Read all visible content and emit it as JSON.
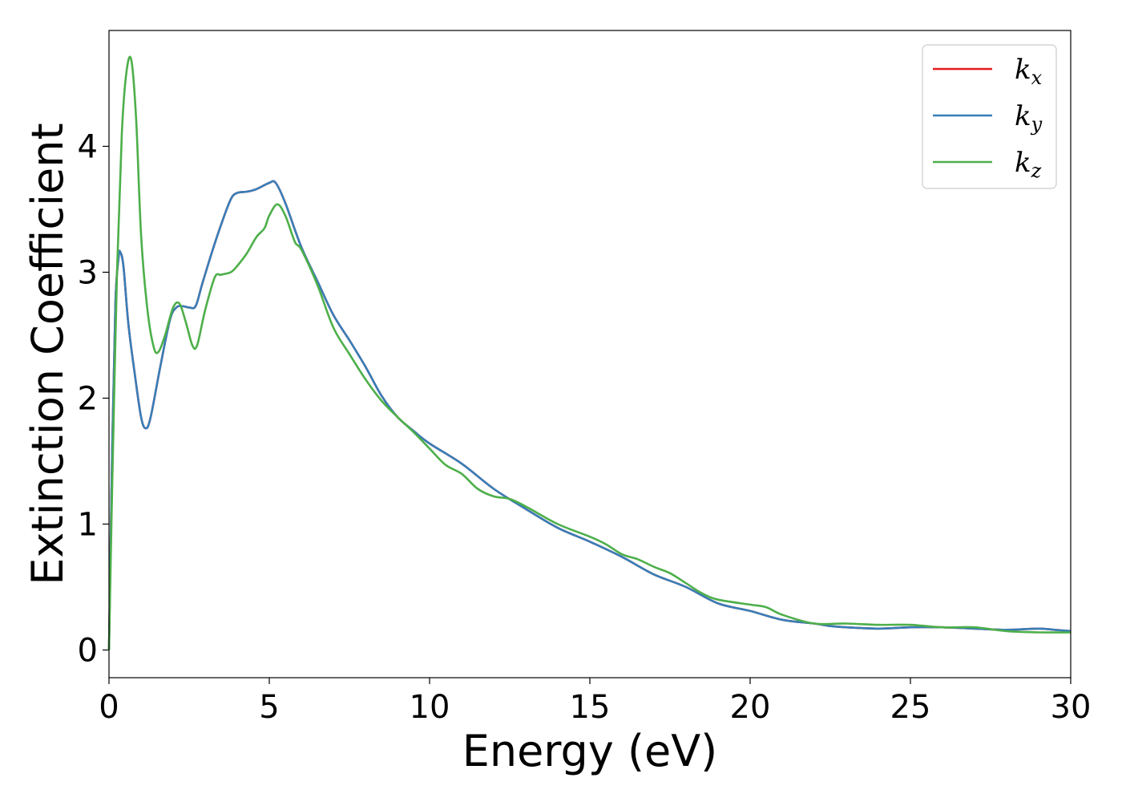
{
  "chart_data": {
    "type": "line",
    "title": "",
    "xlabel": "Energy (eV)",
    "ylabel": "Extinction Coefficient",
    "xlim": [
      0,
      30
    ],
    "ylim": [
      -0.22,
      4.92
    ],
    "xticks": [
      0,
      5,
      10,
      15,
      20,
      25,
      30
    ],
    "yticks": [
      0,
      1,
      2,
      3,
      4
    ],
    "grid": false,
    "legend_position": "top-right",
    "series": [
      {
        "name": "k_x",
        "sym": "k",
        "sub": "x",
        "color": "#e41a1c",
        "x": [
          0,
          0.1,
          0.2,
          0.3,
          0.35,
          0.45,
          0.6,
          0.8,
          1.0,
          1.15,
          1.3,
          1.6,
          1.9,
          2.1,
          2.3,
          2.5,
          2.7,
          2.9,
          3.2,
          3.5,
          3.8,
          4.0,
          4.3,
          4.6,
          5.0,
          5.2,
          5.5,
          6.0,
          6.5,
          7.0,
          7.5,
          8.0,
          8.5,
          9.0,
          9.5,
          10.0,
          11.0,
          12.0,
          13.0,
          14.0,
          15.0,
          16.0,
          17.0,
          18.0,
          19.0,
          20.0,
          21.0,
          22.0,
          22.5,
          23.0,
          24.0,
          25.0,
          26.0,
          27.0,
          28.0,
          29.0,
          29.5,
          30.0
        ],
        "y": [
          0,
          1.6,
          2.75,
          3.12,
          3.16,
          3.05,
          2.6,
          2.2,
          1.85,
          1.76,
          1.85,
          2.25,
          2.62,
          2.72,
          2.73,
          2.72,
          2.73,
          2.9,
          3.15,
          3.38,
          3.58,
          3.63,
          3.64,
          3.66,
          3.71,
          3.71,
          3.55,
          3.2,
          2.93,
          2.66,
          2.46,
          2.25,
          2.02,
          1.85,
          1.74,
          1.64,
          1.48,
          1.28,
          1.12,
          0.97,
          0.86,
          0.74,
          0.6,
          0.5,
          0.37,
          0.31,
          0.24,
          0.21,
          0.19,
          0.18,
          0.17,
          0.18,
          0.18,
          0.17,
          0.16,
          0.17,
          0.16,
          0.15
        ]
      },
      {
        "name": "k_y",
        "sym": "k",
        "sub": "y",
        "color": "#377eb8",
        "x": [
          0,
          0.1,
          0.2,
          0.3,
          0.35,
          0.45,
          0.6,
          0.8,
          1.0,
          1.15,
          1.3,
          1.6,
          1.9,
          2.1,
          2.3,
          2.5,
          2.7,
          2.9,
          3.2,
          3.5,
          3.8,
          4.0,
          4.3,
          4.6,
          5.0,
          5.2,
          5.5,
          6.0,
          6.5,
          7.0,
          7.5,
          8.0,
          8.5,
          9.0,
          9.5,
          10.0,
          11.0,
          12.0,
          13.0,
          14.0,
          15.0,
          16.0,
          17.0,
          18.0,
          19.0,
          20.0,
          21.0,
          22.0,
          22.5,
          23.0,
          24.0,
          25.0,
          26.0,
          27.0,
          28.0,
          29.0,
          29.5,
          30.0
        ],
        "y": [
          0,
          1.6,
          2.75,
          3.12,
          3.16,
          3.05,
          2.6,
          2.2,
          1.85,
          1.76,
          1.85,
          2.25,
          2.62,
          2.72,
          2.73,
          2.72,
          2.73,
          2.9,
          3.15,
          3.38,
          3.58,
          3.63,
          3.64,
          3.66,
          3.71,
          3.71,
          3.55,
          3.2,
          2.93,
          2.66,
          2.46,
          2.25,
          2.02,
          1.85,
          1.74,
          1.64,
          1.48,
          1.28,
          1.12,
          0.97,
          0.86,
          0.74,
          0.6,
          0.5,
          0.37,
          0.31,
          0.24,
          0.21,
          0.19,
          0.18,
          0.17,
          0.18,
          0.18,
          0.17,
          0.16,
          0.17,
          0.16,
          0.15
        ]
      },
      {
        "name": "k_z",
        "sym": "k",
        "sub": "z",
        "color": "#4daf4a",
        "x": [
          0,
          0.1,
          0.25,
          0.4,
          0.55,
          0.7,
          0.85,
          1.0,
          1.2,
          1.4,
          1.55,
          1.75,
          2.0,
          2.2,
          2.4,
          2.6,
          2.75,
          3.0,
          3.3,
          3.5,
          3.8,
          4.0,
          4.3,
          4.6,
          4.85,
          5.0,
          5.25,
          5.5,
          5.8,
          6.0,
          6.5,
          7.0,
          7.5,
          8.0,
          8.5,
          9.0,
          9.5,
          10.0,
          10.5,
          11.0,
          11.5,
          12.0,
          12.5,
          13.0,
          14.0,
          15.0,
          15.5,
          16.0,
          16.5,
          17.0,
          17.5,
          18.0,
          18.5,
          19.0,
          20.0,
          20.5,
          21.0,
          22.0,
          23.0,
          24.0,
          25.0,
          26.0,
          27.0,
          28.0,
          29.0,
          30.0
        ],
        "y": [
          0,
          1.3,
          3.0,
          4.1,
          4.6,
          4.68,
          4.2,
          3.3,
          2.7,
          2.4,
          2.37,
          2.5,
          2.72,
          2.75,
          2.6,
          2.42,
          2.42,
          2.7,
          2.96,
          2.98,
          3.0,
          3.05,
          3.15,
          3.28,
          3.35,
          3.45,
          3.54,
          3.45,
          3.24,
          3.18,
          2.9,
          2.56,
          2.35,
          2.15,
          1.98,
          1.85,
          1.73,
          1.6,
          1.47,
          1.4,
          1.28,
          1.22,
          1.2,
          1.14,
          1.0,
          0.9,
          0.84,
          0.76,
          0.72,
          0.66,
          0.61,
          0.53,
          0.45,
          0.4,
          0.36,
          0.34,
          0.28,
          0.21,
          0.21,
          0.2,
          0.2,
          0.18,
          0.18,
          0.15,
          0.14,
          0.14
        ]
      }
    ]
  }
}
